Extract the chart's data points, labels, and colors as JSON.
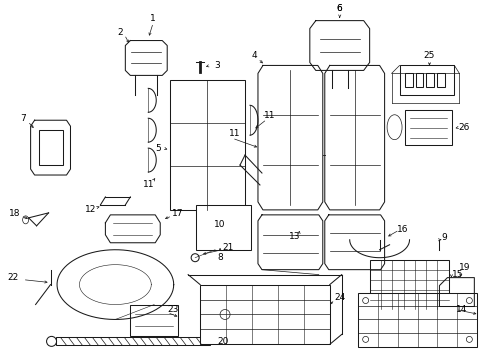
{
  "bg_color": "#ffffff",
  "line_color": "#1a1a1a",
  "fig_width": 4.89,
  "fig_height": 3.6,
  "dpi": 100,
  "lw": 0.75
}
